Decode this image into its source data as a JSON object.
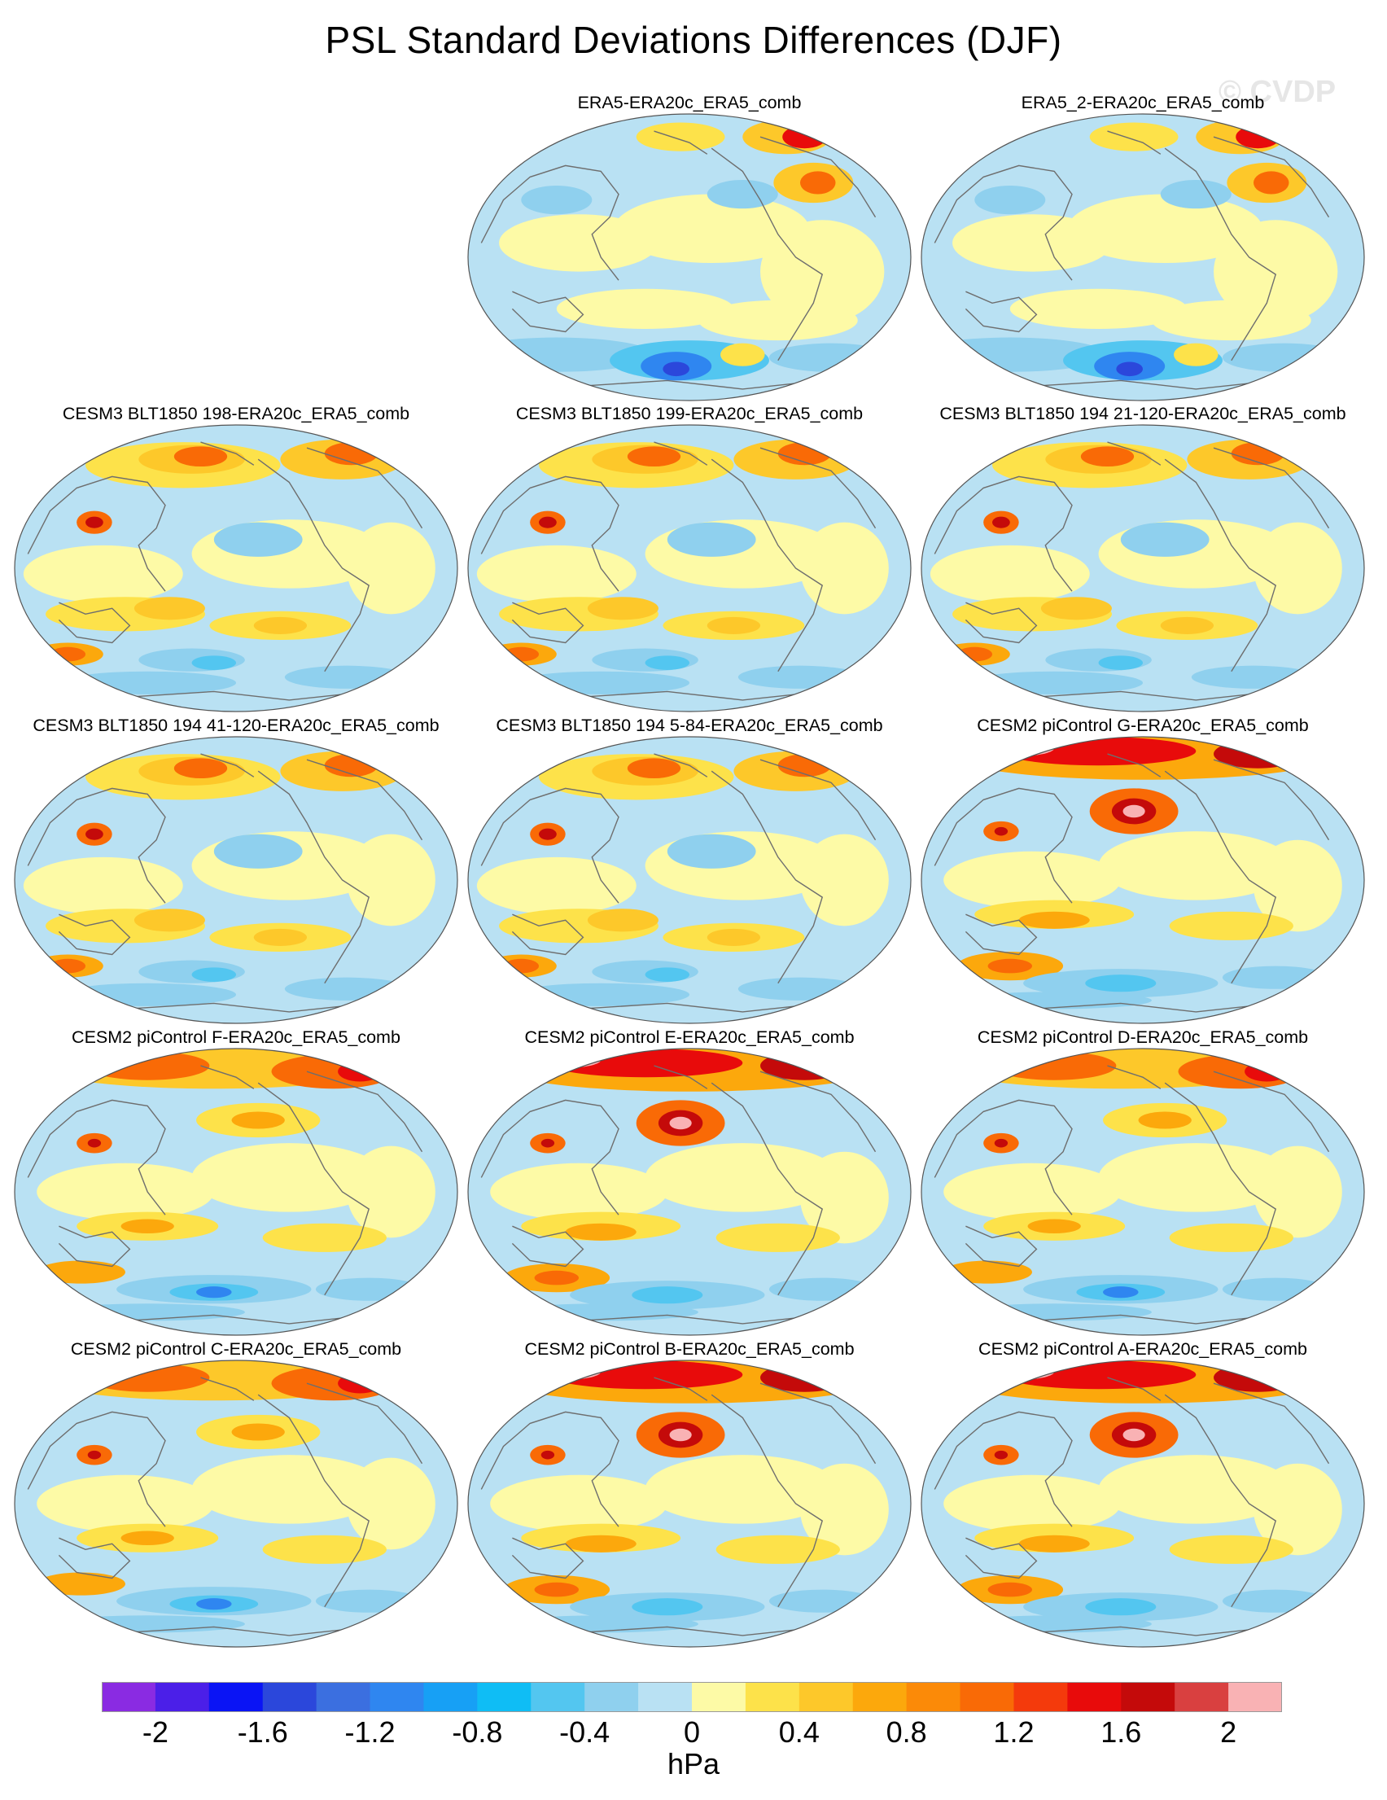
{
  "title": "PSL Standard Deviations Differences (DJF)",
  "watermark": "© CVDP",
  "panels": [
    {
      "label": "ERA5-ERA20c_ERA5_comb",
      "variant": "obs"
    },
    {
      "label": "ERA5_2-ERA20c_ERA5_comb",
      "variant": "obs"
    },
    {
      "label": "CESM3 BLT1850 198-ERA20c_ERA5_comb",
      "variant": "cesm3"
    },
    {
      "label": "CESM3 BLT1850 199-ERA20c_ERA5_comb",
      "variant": "cesm3"
    },
    {
      "label": "CESM3 BLT1850 194 21-120-ERA20c_ERA5_comb",
      "variant": "cesm3"
    },
    {
      "label": "CESM3 BLT1850 194 41-120-ERA20c_ERA5_comb",
      "variant": "cesm3"
    },
    {
      "label": "CESM3 BLT1850 194 5-84-ERA20c_ERA5_comb",
      "variant": "cesm3"
    },
    {
      "label": "CESM2 piControl G-ERA20c_ERA5_comb",
      "variant": "cesm2hot"
    },
    {
      "label": "CESM2 piControl F-ERA20c_ERA5_comb",
      "variant": "cesm2"
    },
    {
      "label": "CESM2 piControl E-ERA20c_ERA5_comb",
      "variant": "cesm2hot"
    },
    {
      "label": "CESM2 piControl D-ERA20c_ERA5_comb",
      "variant": "cesm2"
    },
    {
      "label": "CESM2 piControl C-ERA20c_ERA5_comb",
      "variant": "cesm2"
    },
    {
      "label": "CESM2 piControl B-ERA20c_ERA5_comb",
      "variant": "cesm2hot"
    },
    {
      "label": "CESM2 piControl A-ERA20c_ERA5_comb",
      "variant": "cesm2hot"
    }
  ],
  "colorbar": {
    "colors": [
      "#8a2be2",
      "#4b1fe8",
      "#0a14f5",
      "#2b47db",
      "#3b6fe0",
      "#2f86f0",
      "#17a0f5",
      "#0fbdf5",
      "#53c6f0",
      "#8fd0ee",
      "#b9e1f3",
      "#fdfaa6",
      "#fde24a",
      "#fdc82a",
      "#fca80c",
      "#fb8a08",
      "#f96a06",
      "#f43a0c",
      "#e80b0b",
      "#c40a0a",
      "#d94040",
      "#f9b2b4"
    ],
    "ticks": [
      {
        "value": -2,
        "label": "-2"
      },
      {
        "value": -1.6,
        "label": "-1.6"
      },
      {
        "value": -1.2,
        "label": "-1.2"
      },
      {
        "value": -0.8,
        "label": "-0.8"
      },
      {
        "value": -0.4,
        "label": "-0.4"
      },
      {
        "value": 0,
        "label": "0"
      },
      {
        "value": 0.4,
        "label": "0.4"
      },
      {
        "value": 0.8,
        "label": "0.8"
      },
      {
        "value": 1.2,
        "label": "1.2"
      },
      {
        "value": 1.6,
        "label": "1.6"
      },
      {
        "value": 2,
        "label": "2"
      }
    ],
    "units": "hPa"
  }
}
